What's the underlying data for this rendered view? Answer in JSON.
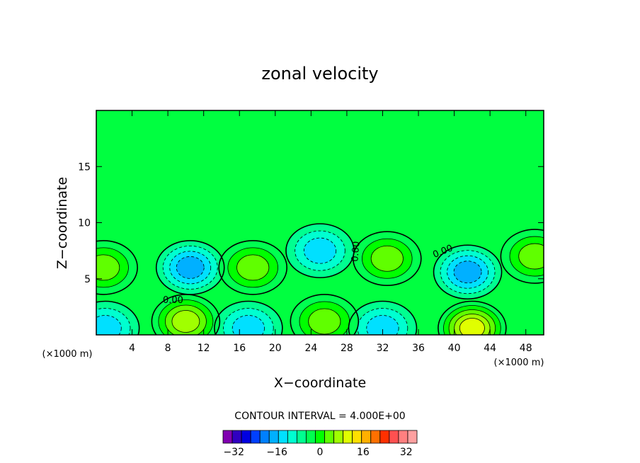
{
  "chart_data": {
    "type": "contour",
    "title": "zonal velocity",
    "xlabel": "X−coordinate",
    "ylabel": "Z−coordinate",
    "x_unit_left": "(×1000 m)",
    "x_unit_right": "(×1000 m)",
    "xlim": [
      0,
      50
    ],
    "ylim": [
      0,
      20
    ],
    "xticks": [
      4,
      8,
      12,
      16,
      20,
      24,
      28,
      32,
      36,
      40,
      44,
      48
    ],
    "yticks": [
      5,
      10,
      15
    ],
    "contour_interval_text": "CONTOUR INTERVAL = 4.000E+00",
    "contour_interval": 4,
    "zero_contour_labels": [
      "0.00",
      "0.00",
      "0.00",
      "0.00"
    ],
    "colorbar": {
      "min": -36,
      "max": 36,
      "step": 4,
      "tick_values": [
        -32,
        -16,
        0,
        16,
        32
      ],
      "tick_labels": [
        "−32",
        "−16",
        "0",
        "16",
        "32"
      ],
      "colors": [
        "#8000b0",
        "#3000c0",
        "#0000e0",
        "#0040ff",
        "#0080ff",
        "#00b0ff",
        "#00e0ff",
        "#00ffd0",
        "#00ff90",
        "#00ff50",
        "#00ff00",
        "#60ff00",
        "#a0ff00",
        "#e0ff00",
        "#ffe000",
        "#ffb000",
        "#ff7000",
        "#ff3000",
        "#ff5050",
        "#ff8080",
        "#ffa0a0"
      ]
    },
    "features": [
      {
        "kind": "min",
        "x": 10.5,
        "z": 6.0,
        "value": -14
      },
      {
        "kind": "min",
        "x": 25.0,
        "z": 7.5,
        "value": -10
      },
      {
        "kind": "min",
        "x": 41.5,
        "z": 5.6,
        "value": -12
      },
      {
        "kind": "min",
        "x": 17.0,
        "z": 0.6,
        "value": -10
      },
      {
        "kind": "min",
        "x": 32.0,
        "z": 0.6,
        "value": -8
      },
      {
        "kind": "min",
        "x": 1.0,
        "z": 0.6,
        "value": -8
      },
      {
        "kind": "max",
        "x": 17.5,
        "z": 6.0,
        "value": 10
      },
      {
        "kind": "max",
        "x": 32.5,
        "z": 6.8,
        "value": 10
      },
      {
        "kind": "max",
        "x": 10.0,
        "z": 1.2,
        "value": 14
      },
      {
        "kind": "max",
        "x": 42.0,
        "z": 0.6,
        "value": 16
      },
      {
        "kind": "max",
        "x": 0.8,
        "z": 6.0,
        "value": 8
      },
      {
        "kind": "max",
        "x": 49.0,
        "z": 7.0,
        "value": 8
      },
      {
        "kind": "max",
        "x": 25.5,
        "z": 1.2,
        "value": 8
      }
    ]
  }
}
